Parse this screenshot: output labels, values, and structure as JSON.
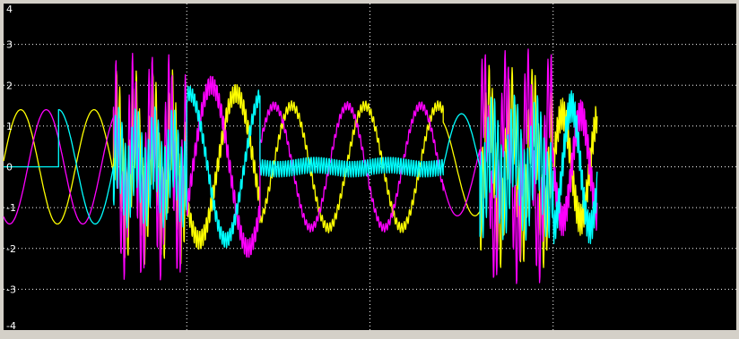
{
  "chart_data": {
    "type": "line",
    "title": "",
    "xlabel": "",
    "ylabel": "",
    "xlim": [
      0,
      20
    ],
    "ylim": [
      -4,
      4
    ],
    "y_ticks": [
      -4,
      -3,
      -2,
      -1,
      0,
      1,
      2,
      3,
      4
    ],
    "y_tick_labels": [
      "-4",
      "-3",
      "-2",
      "-1",
      "0",
      "1",
      "2",
      "3",
      "4"
    ],
    "x_gridlines": [
      0,
      5,
      10,
      15,
      20
    ],
    "grid": true,
    "legend": "none",
    "background": "#000000",
    "frame_color": "#d4d0c8",
    "grid_color": "#ffffff",
    "series": [
      {
        "color": "#ffff00",
        "segments": [
          {
            "x0": 0.0,
            "x1": 3.0,
            "amp": 1.4,
            "period": 2.0,
            "phase": 0.1,
            "ripple_amp": 0.0,
            "ripple_period": 0.1
          },
          {
            "x0": 3.0,
            "x1": 5.0,
            "amp": 1.2,
            "period": 0.5,
            "phase": 0.3,
            "ripple_amp": 1.2,
            "ripple_period": 0.09
          },
          {
            "x0": 5.0,
            "x1": 7.0,
            "amp": 1.8,
            "period": 2.0,
            "phase": 0.5,
            "ripple_amp": 0.25,
            "ripple_period": 0.06
          },
          {
            "x0": 7.0,
            "x1": 12.0,
            "amp": 1.5,
            "period": 2.0,
            "phase": 2.0,
            "ripple_amp": 0.12,
            "ripple_period": 0.07
          },
          {
            "x0": 12.0,
            "x1": 13.0,
            "amp": 1.2,
            "period": 2.0,
            "phase": 2.0,
            "ripple_amp": 0.0,
            "ripple_period": 0.1
          },
          {
            "x0": 13.0,
            "x1": 15.0,
            "amp": 1.5,
            "period": 0.6,
            "phase": 1.0,
            "ripple_amp": 1.0,
            "ripple_period": 0.09
          },
          {
            "x0": 15.0,
            "x1": 16.2,
            "amp": 1.3,
            "period": 1.0,
            "phase": 0.0,
            "ripple_amp": 0.4,
            "ripple_period": 0.05
          }
        ]
      },
      {
        "color": "#ff00ff",
        "segments": [
          {
            "x0": 0.0,
            "x1": 3.0,
            "amp": 1.4,
            "period": 2.0,
            "phase": 4.2,
            "ripple_amp": 0.0,
            "ripple_period": 0.1
          },
          {
            "x0": 3.0,
            "x1": 5.0,
            "amp": 1.5,
            "period": 0.5,
            "phase": 1.2,
            "ripple_amp": 1.3,
            "ripple_period": 0.09
          },
          {
            "x0": 5.0,
            "x1": 7.0,
            "amp": 2.0,
            "period": 2.0,
            "phase": 2.6,
            "ripple_amp": 0.25,
            "ripple_period": 0.06
          },
          {
            "x0": 7.0,
            "x1": 12.0,
            "amp": 1.5,
            "period": 2.0,
            "phase": 3.5,
            "ripple_amp": 0.1,
            "ripple_period": 0.07
          },
          {
            "x0": 12.0,
            "x1": 13.0,
            "amp": 1.2,
            "period": 2.0,
            "phase": 3.5,
            "ripple_amp": 0.0,
            "ripple_period": 0.1
          },
          {
            "x0": 13.0,
            "x1": 15.0,
            "amp": 1.8,
            "period": 0.6,
            "phase": 2.5,
            "ripple_amp": 1.1,
            "ripple_period": 0.09
          },
          {
            "x0": 15.0,
            "x1": 16.2,
            "amp": 1.3,
            "period": 1.0,
            "phase": 3.1,
            "ripple_amp": 0.4,
            "ripple_period": 0.05
          }
        ]
      },
      {
        "color": "#00ffff",
        "segments": [
          {
            "x0": 0.0,
            "x1": 1.5,
            "amp": 0.0,
            "period": 2.0,
            "phase": 0.0,
            "ripple_amp": 0.0,
            "ripple_period": 0.1
          },
          {
            "x0": 1.5,
            "x1": 3.0,
            "amp": 1.4,
            "period": 2.0,
            "phase": 3.14,
            "ripple_amp": 0.0,
            "ripple_period": 0.1
          },
          {
            "x0": 3.0,
            "x1": 5.0,
            "amp": 0.5,
            "period": 0.5,
            "phase": 0.0,
            "ripple_amp": 1.0,
            "ripple_period": 0.09
          },
          {
            "x0": 5.0,
            "x1": 7.0,
            "amp": 1.8,
            "period": 2.0,
            "phase": 4.5,
            "ripple_amp": 0.2,
            "ripple_period": 0.06
          },
          {
            "x0": 7.0,
            "x1": 12.0,
            "amp": 0.05,
            "period": 2.0,
            "phase": 0.0,
            "ripple_amp": 0.2,
            "ripple_period": 0.07
          },
          {
            "x0": 12.0,
            "x1": 13.0,
            "amp": 1.3,
            "period": 2.0,
            "phase": 0.0,
            "ripple_amp": 0.0,
            "ripple_period": 0.1
          },
          {
            "x0": 13.0,
            "x1": 15.0,
            "amp": 0.7,
            "period": 0.6,
            "phase": 0.0,
            "ripple_amp": 1.1,
            "ripple_period": 0.09
          },
          {
            "x0": 15.0,
            "x1": 16.2,
            "amp": 1.5,
            "period": 1.0,
            "phase": 4.7,
            "ripple_amp": 0.4,
            "ripple_period": 0.05
          }
        ]
      }
    ]
  }
}
